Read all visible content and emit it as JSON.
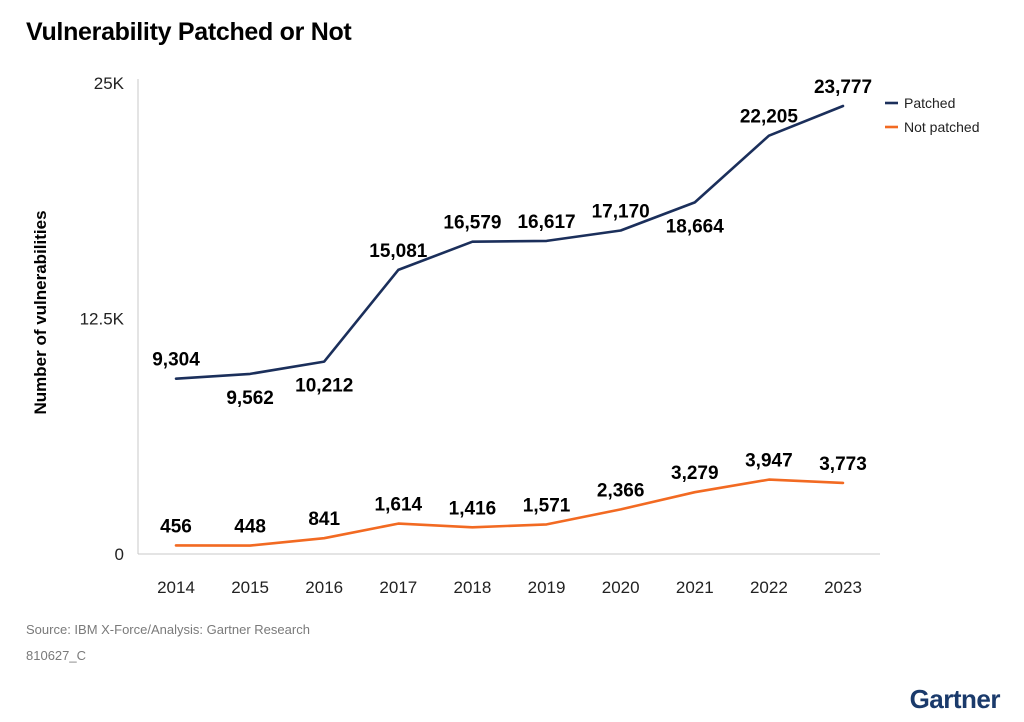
{
  "title": "Vulnerability Patched or Not",
  "footer": {
    "source": "Source: IBM X-Force/Analysis: Gartner Research",
    "code": "810627_C",
    "brand": "Gartner"
  },
  "chart_data": {
    "type": "line",
    "title": "Vulnerability Patched or Not",
    "xlabel": "",
    "ylabel": "Number of vulnerabilities",
    "ylim": [
      0,
      25000
    ],
    "y_ticks": [
      {
        "value": 0,
        "label": "0"
      },
      {
        "value": 12500,
        "label": "12.5K"
      },
      {
        "value": 25000,
        "label": "25K"
      }
    ],
    "x": [
      "2014",
      "2015",
      "2016",
      "2017",
      "2018",
      "2019",
      "2020",
      "2021",
      "2022",
      "2023"
    ],
    "series": [
      {
        "name": "Patched",
        "color": "#1b2f5b",
        "values": [
          9304,
          9562,
          10212,
          15081,
          16579,
          16617,
          17170,
          18664,
          22205,
          23777
        ],
        "labels": [
          "9,304",
          "9,562",
          "10,212",
          "15,081",
          "16,579",
          "16,617",
          "17,170",
          "18,664",
          "22,205",
          "23,777"
        ],
        "label_side": [
          "above",
          "below",
          "below",
          "above",
          "above",
          "above",
          "above",
          "below",
          "above",
          "above"
        ]
      },
      {
        "name": "Not patched",
        "color": "#f26a22",
        "values": [
          456,
          448,
          841,
          1614,
          1416,
          1571,
          2366,
          3279,
          3947,
          3773
        ],
        "labels": [
          "456",
          "448",
          "841",
          "1,614",
          "1,416",
          "1,571",
          "2,366",
          "3,279",
          "3,947",
          "3,773"
        ],
        "label_side": [
          "above",
          "above",
          "above",
          "above",
          "above",
          "above",
          "above",
          "above",
          "above",
          "above"
        ]
      }
    ],
    "legend": "top-right",
    "grid": false
  }
}
